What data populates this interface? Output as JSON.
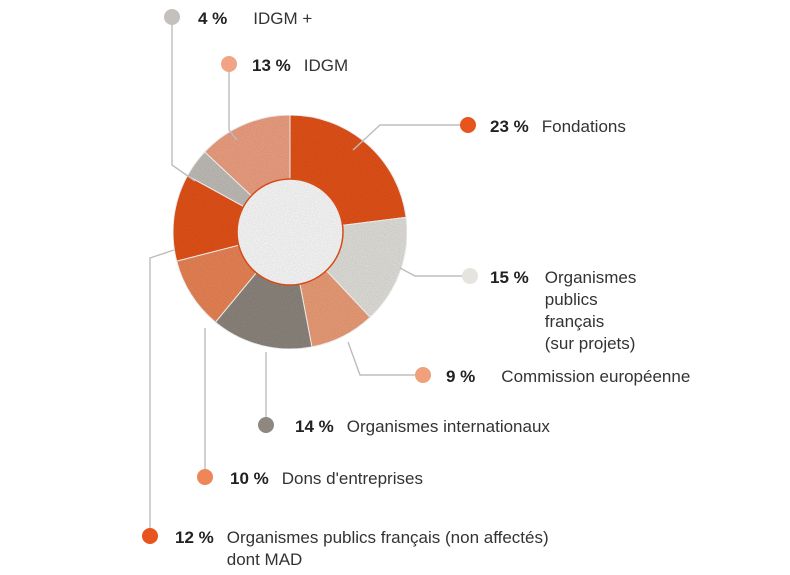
{
  "chart_data": {
    "type": "pie",
    "donut": true,
    "slices": [
      {
        "pct_label": "23 %",
        "value": 23,
        "label": [
          "Fondations"
        ],
        "color": "#E8541E"
      },
      {
        "pct_label": "15 %",
        "value": 15,
        "label": [
          "Organismes",
          "publics",
          "français",
          "(sur projets)"
        ],
        "color": "#E6E4DF"
      },
      {
        "pct_label": "9 %",
        "value": 9,
        "label": [
          "Commission européenne"
        ],
        "color": "#F0A07A"
      },
      {
        "pct_label": "14 %",
        "value": 14,
        "label": [
          "Organismes internationaux"
        ],
        "color": "#8F8880"
      },
      {
        "pct_label": "10 %",
        "value": 10,
        "label": [
          "Dons d'entreprises"
        ],
        "color": "#EE8658"
      },
      {
        "pct_label": "12 %",
        "value": 12,
        "label": [
          "Organismes publics français (non affectés)",
          "dont MAD"
        ],
        "color": "#E8541E"
      },
      {
        "pct_label": "4 %",
        "value": 4,
        "label": [
          "IDGM +"
        ],
        "color": "#C4C1BC"
      },
      {
        "pct_label": "13 %",
        "value": 13,
        "label": [
          "IDGM"
        ],
        "color": "#F2A384"
      }
    ]
  }
}
